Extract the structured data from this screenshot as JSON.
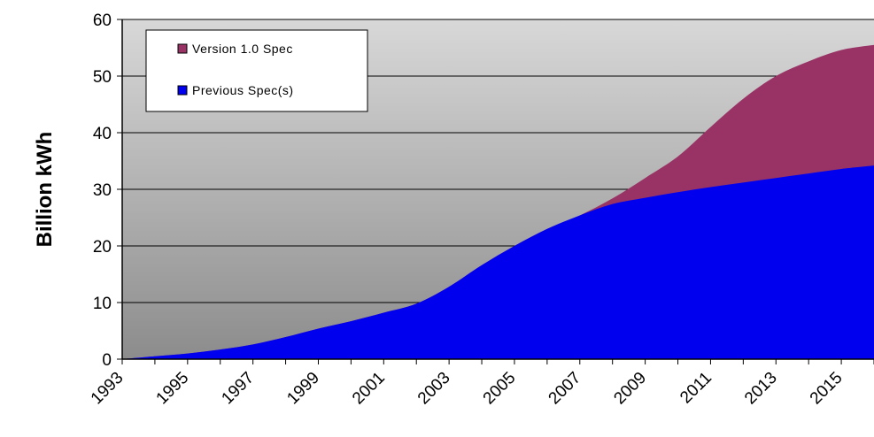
{
  "chart_data": {
    "type": "area",
    "stacked": true,
    "title": "",
    "xlabel": "",
    "ylabel": "Billion kWh",
    "ylim": [
      0,
      60
    ],
    "yticks": [
      0,
      10,
      20,
      30,
      40,
      50,
      60
    ],
    "xlim": [
      1993,
      2016
    ],
    "xtick_labels": [
      "1993",
      "1995",
      "1997",
      "1999",
      "2001",
      "2003",
      "2005",
      "2007",
      "2009",
      "2011",
      "2013",
      "2015"
    ],
    "grid": true,
    "legend_position": "top-left",
    "x": [
      1993,
      1994,
      1995,
      1996,
      1997,
      1998,
      1999,
      2000,
      2001,
      2002,
      2003,
      2004,
      2005,
      2006,
      2007,
      2008,
      2009,
      2010,
      2011,
      2012,
      2013,
      2014,
      2015,
      2016
    ],
    "series": [
      {
        "name": "Previous Spec(s)",
        "color": "#0000ee",
        "values": [
          0.0,
          0.5,
          1.0,
          1.7,
          2.6,
          3.9,
          5.4,
          6.7,
          8.2,
          9.8,
          12.8,
          16.6,
          20.0,
          23.0,
          25.4,
          27.4,
          28.5,
          29.5,
          30.4,
          31.2,
          32.0,
          32.8,
          33.6,
          34.2
        ]
      },
      {
        "name": "Version 1.0 Spec",
        "color": "#993366",
        "values": [
          0,
          0,
          0,
          0,
          0,
          0,
          0,
          0,
          0,
          0,
          0,
          0,
          0,
          0,
          0,
          1.0,
          3.5,
          6.3,
          10.6,
          14.8,
          18.0,
          19.8,
          21.0,
          21.3
        ]
      }
    ],
    "legend_order": [
      "Version 1.0 Spec",
      "Previous Spec(s)"
    ]
  }
}
